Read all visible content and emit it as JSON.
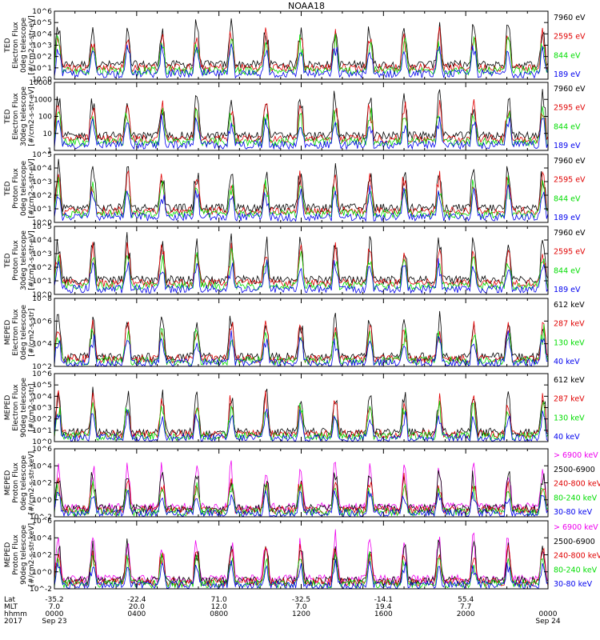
{
  "title": "NOAA18",
  "colors": {
    "black": "#000000",
    "red": "#e00000",
    "green": "#00dd00",
    "blue": "#0000ee",
    "magenta": "#ee00ee"
  },
  "chart_data": [
    {
      "type": "line",
      "ylabel": [
        "TED",
        "Electron Flux",
        "0deg telescope",
        "[#/cm2-s-str-eV]"
      ],
      "yscale": "log",
      "ylim": [
        1,
        1000000
      ],
      "yticks": [
        {
          "v": 1,
          "label": "10^0"
        },
        {
          "v": 10,
          "label": "10^1"
        },
        {
          "v": 100,
          "label": "10^2"
        },
        {
          "v": 1000,
          "label": "10^3"
        },
        {
          "v": 10000,
          "label": "10^4"
        },
        {
          "v": 100000,
          "label": "10^5"
        },
        {
          "v": 1000000,
          "label": "10^6"
        }
      ],
      "series": [
        {
          "name": "7960 eV",
          "color": "black"
        },
        {
          "name": "2595 eV",
          "color": "red"
        },
        {
          "name": "844 eV",
          "color": "green"
        },
        {
          "name": "189 eV",
          "color": "blue"
        }
      ]
    },
    {
      "type": "line",
      "ylabel": [
        "TED",
        "Electron Flux",
        "30deg telescope",
        "[#/cm2-s-str-eV]"
      ],
      "yscale": "log",
      "ylim": [
        1,
        10000
      ],
      "yticks": [
        {
          "v": 1,
          "label": "1"
        },
        {
          "v": 10,
          "label": "10"
        },
        {
          "v": 100,
          "label": "100"
        },
        {
          "v": 1000,
          "label": "1000"
        },
        {
          "v": 10000,
          "label": "10000"
        }
      ],
      "series": [
        {
          "name": "7960 eV",
          "color": "black"
        },
        {
          "name": "2595 eV",
          "color": "red"
        },
        {
          "name": "844 eV",
          "color": "green"
        },
        {
          "name": "189 eV",
          "color": "blue"
        }
      ]
    },
    {
      "type": "line",
      "ylabel": [
        "TED",
        "Proton Flux",
        "0deg telescope",
        "[#/cm2-s-str-eV]"
      ],
      "yscale": "log",
      "ylim": [
        1,
        100000
      ],
      "yticks": [
        {
          "v": 1,
          "label": "10^0"
        },
        {
          "v": 10,
          "label": "10^1"
        },
        {
          "v": 100,
          "label": "10^2"
        },
        {
          "v": 1000,
          "label": "10^3"
        },
        {
          "v": 10000,
          "label": "10^4"
        },
        {
          "v": 100000,
          "label": "10^5"
        }
      ],
      "series": [
        {
          "name": "7960 eV",
          "color": "black"
        },
        {
          "name": "2595 eV",
          "color": "red"
        },
        {
          "name": "844 eV",
          "color": "green"
        },
        {
          "name": "189 eV",
          "color": "blue"
        }
      ]
    },
    {
      "type": "line",
      "ylabel": [
        "TED",
        "Proton Flux",
        "30deg telescope",
        "[#/cm2-s-str-eV]"
      ],
      "yscale": "log",
      "ylim": [
        1,
        100000
      ],
      "yticks": [
        {
          "v": 1,
          "label": "10^0"
        },
        {
          "v": 10,
          "label": "10^1"
        },
        {
          "v": 100,
          "label": "10^2"
        },
        {
          "v": 1000,
          "label": "10^3"
        },
        {
          "v": 10000,
          "label": "10^4"
        },
        {
          "v": 100000,
          "label": "10^5"
        }
      ],
      "series": [
        {
          "name": "7960 eV",
          "color": "black"
        },
        {
          "name": "2595 eV",
          "color": "red"
        },
        {
          "name": "844 eV",
          "color": "green"
        },
        {
          "name": "189 eV",
          "color": "blue"
        }
      ]
    },
    {
      "type": "line",
      "ylabel": [
        "MEPED",
        "Electron Flux",
        "0deg telescope",
        "[#/cm2-s-str]"
      ],
      "yscale": "log",
      "ylim": [
        100,
        100000000
      ],
      "yticks": [
        {
          "v": 100,
          "label": "10^2"
        },
        {
          "v": 10000,
          "label": "10^4"
        },
        {
          "v": 1000000,
          "label": "10^6"
        },
        {
          "v": 100000000,
          "label": "10^8"
        }
      ],
      "series": [
        {
          "name": "612 keV",
          "color": "black"
        },
        {
          "name": "287 keV",
          "color": "red"
        },
        {
          "name": "130 keV",
          "color": "green"
        },
        {
          "name": "40 keV",
          "color": "blue"
        }
      ]
    },
    {
      "type": "line",
      "ylabel": [
        "MEPED",
        "Electron Flux",
        "90deg telescope",
        "[#/cm2-s-str]"
      ],
      "yscale": "log",
      "ylim": [
        1,
        1000000
      ],
      "yticks": [
        {
          "v": 1,
          "label": "10^0"
        },
        {
          "v": 10,
          "label": "10^1"
        },
        {
          "v": 100,
          "label": "10^2"
        },
        {
          "v": 1000,
          "label": "10^3"
        },
        {
          "v": 10000,
          "label": "10^4"
        },
        {
          "v": 100000,
          "label": "10^5"
        },
        {
          "v": 1000000,
          "label": "10^6"
        }
      ],
      "series": [
        {
          "name": "612 keV",
          "color": "black"
        },
        {
          "name": "287 keV",
          "color": "red"
        },
        {
          "name": "130 keV",
          "color": "green"
        },
        {
          "name": "40 keV",
          "color": "blue"
        }
      ]
    },
    {
      "type": "line",
      "ylabel": [
        "MEPED",
        "Proton Flux",
        "0deg telescope",
        "[#/cm2-s-str-keV]"
      ],
      "yscale": "log",
      "ylim": [
        0.01,
        1000000
      ],
      "yticks": [
        {
          "v": 0.01,
          "label": "10^-2"
        },
        {
          "v": 1,
          "label": "10^0"
        },
        {
          "v": 100,
          "label": "10^2"
        },
        {
          "v": 10000,
          "label": "10^4"
        },
        {
          "v": 1000000,
          "label": "10^6"
        }
      ],
      "series": [
        {
          "name": "> 6900 keV",
          "color": "magenta"
        },
        {
          "name": "2500-6900",
          "color": "black"
        },
        {
          "name": "240-800 keV",
          "color": "red"
        },
        {
          "name": "80-240 keV",
          "color": "green"
        },
        {
          "name": "30-80 keV",
          "color": "blue"
        }
      ]
    },
    {
      "type": "line",
      "ylabel": [
        "MEPED",
        "Proton Flux",
        "90deg telescope",
        "[#/cm2-s-str-keV]"
      ],
      "yscale": "log",
      "ylim": [
        0.01,
        1000000
      ],
      "yticks": [
        {
          "v": 0.01,
          "label": "10^-2"
        },
        {
          "v": 1,
          "label": "10^0"
        },
        {
          "v": 100,
          "label": "10^2"
        },
        {
          "v": 10000,
          "label": "10^4"
        },
        {
          "v": 1000000,
          "label": "10^6"
        }
      ],
      "series": [
        {
          "name": "> 6900 keV",
          "color": "magenta"
        },
        {
          "name": "2500-6900",
          "color": "black"
        },
        {
          "name": "240-800 keV",
          "color": "red"
        },
        {
          "name": "80-240 keV",
          "color": "green"
        },
        {
          "name": "30-80 keV",
          "color": "blue"
        }
      ]
    }
  ],
  "xaxis": {
    "row_labels": [
      "Lat",
      "MLT",
      "hhmm",
      "2017"
    ],
    "xlim": [
      0,
      1440
    ],
    "ticks": [
      {
        "t": 0,
        "lat": "-35.2",
        "mlt": "7.0",
        "hhmm": "0000",
        "date": "Sep 23"
      },
      {
        "t": 240,
        "lat": "-22.4",
        "mlt": "20.0",
        "hhmm": "0400",
        "date": ""
      },
      {
        "t": 480,
        "lat": "71.0",
        "mlt": "12.0",
        "hhmm": "0800",
        "date": ""
      },
      {
        "t": 720,
        "lat": "-32.5",
        "mlt": "7.0",
        "hhmm": "1200",
        "date": ""
      },
      {
        "t": 960,
        "lat": "-14.1",
        "mlt": "19.4",
        "hhmm": "1600",
        "date": ""
      },
      {
        "t": 1200,
        "lat": "55.4",
        "mlt": "7.7",
        "hhmm": "2000",
        "date": ""
      },
      {
        "t": 1440,
        "lat": "",
        "mlt": "",
        "hhmm": "0000",
        "date": "Sep 24"
      }
    ]
  }
}
